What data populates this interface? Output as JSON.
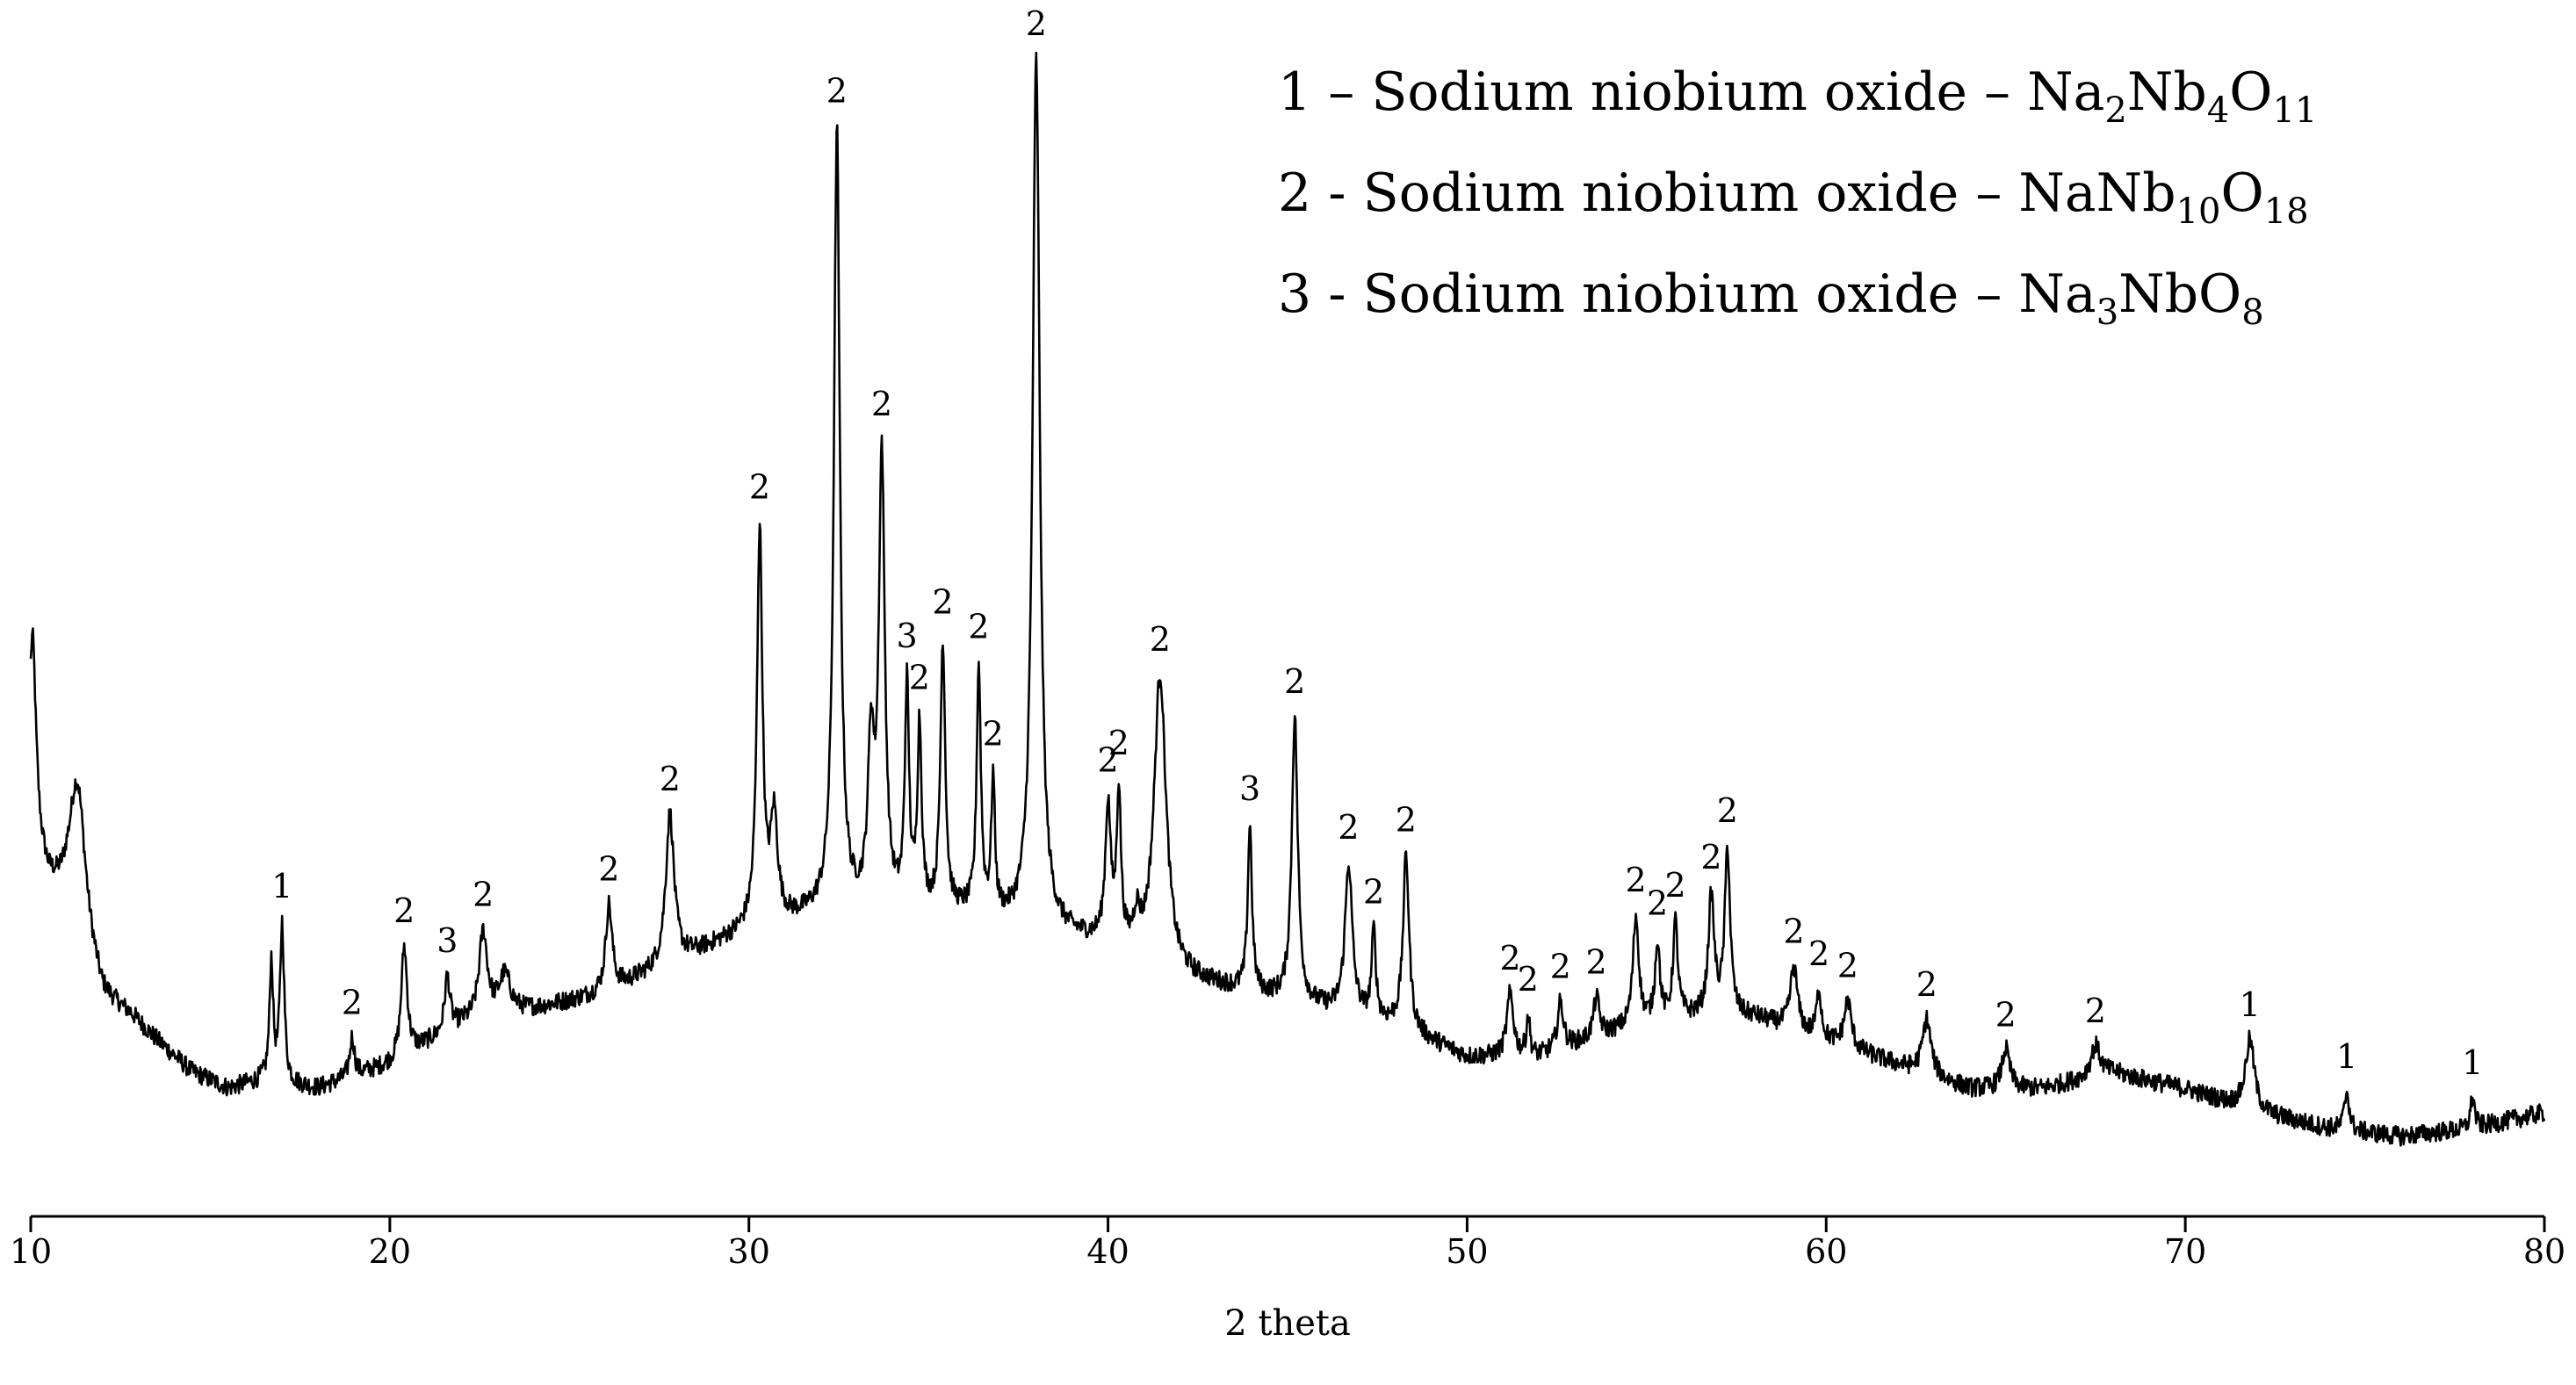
{
  "chart_data": {
    "type": "line",
    "xlabel": "2 theta",
    "ylabel": "",
    "xlim": [
      10,
      80
    ],
    "xticks": [
      10,
      20,
      30,
      40,
      50,
      60,
      70,
      80
    ],
    "grid": false,
    "legend_position": "top-right",
    "line_color": "#000000",
    "legend": [
      {
        "prefix": "1 – Sodium niobium oxide – ",
        "formula": [
          [
            "Na",
            ""
          ],
          [
            "2",
            "sub"
          ],
          [
            "Nb",
            ""
          ],
          [
            "4",
            "sub"
          ],
          [
            "O",
            ""
          ],
          [
            "11",
            "sub"
          ]
        ]
      },
      {
        "prefix": "2 - Sodium niobium oxide – ",
        "formula": [
          [
            "NaNb",
            ""
          ],
          [
            "10",
            "sub"
          ],
          [
            "O",
            ""
          ],
          [
            "18",
            "sub"
          ]
        ]
      },
      {
        "prefix": "3 - Sodium niobium oxide – ",
        "formula": [
          [
            "Na",
            ""
          ],
          [
            "3",
            "sub"
          ],
          [
            "NbO",
            ""
          ],
          [
            "8",
            "sub"
          ]
        ]
      }
    ],
    "baseline": [
      [
        10.0,
        31
      ],
      [
        10.5,
        25
      ],
      [
        11.0,
        22
      ],
      [
        12.0,
        11
      ],
      [
        12.8,
        9
      ],
      [
        13.5,
        6
      ],
      [
        14.5,
        2
      ],
      [
        15.5,
        0
      ],
      [
        16.5,
        1
      ],
      [
        18,
        0
      ],
      [
        20,
        3
      ],
      [
        22,
        8
      ],
      [
        24,
        10
      ],
      [
        26,
        12
      ],
      [
        28,
        16
      ],
      [
        30,
        20
      ],
      [
        32,
        22
      ],
      [
        34,
        22
      ],
      [
        36,
        22
      ],
      [
        38,
        20
      ],
      [
        40,
        18
      ],
      [
        42,
        14
      ],
      [
        44,
        12
      ],
      [
        46,
        10
      ],
      [
        48,
        8
      ],
      [
        50,
        4
      ],
      [
        52,
        4
      ],
      [
        54,
        7
      ],
      [
        56,
        9
      ],
      [
        58,
        9
      ],
      [
        60,
        6
      ],
      [
        62,
        3
      ],
      [
        64,
        0
      ],
      [
        66,
        0
      ],
      [
        68,
        2
      ],
      [
        70,
        0
      ],
      [
        72,
        -3
      ],
      [
        74,
        -5
      ],
      [
        76,
        -6
      ],
      [
        78,
        -5
      ],
      [
        80,
        -3
      ]
    ],
    "peaks": [
      {
        "x": 10.05,
        "h": 26,
        "w": 0.12,
        "label": ""
      },
      {
        "x": 11.3,
        "h": 20,
        "w": 0.28,
        "label": ""
      },
      {
        "x": 16.7,
        "h": 15,
        "w": 0.06,
        "label": ""
      },
      {
        "x": 17.0,
        "h": 20,
        "w": 0.07,
        "label": "1"
      },
      {
        "x": 18.95,
        "h": 5,
        "w": 0.08,
        "label": "2"
      },
      {
        "x": 20.4,
        "h": 14,
        "w": 0.1,
        "label": "2"
      },
      {
        "x": 21.6,
        "h": 7,
        "w": 0.09,
        "label": "3"
      },
      {
        "x": 22.6,
        "h": 11,
        "w": 0.14,
        "label": "2"
      },
      {
        "x": 23.2,
        "h": 5,
        "w": 0.2,
        "label": ""
      },
      {
        "x": 26.1,
        "h": 11,
        "w": 0.11,
        "label": "2"
      },
      {
        "x": 27.8,
        "h": 19,
        "w": 0.14,
        "label": "2"
      },
      {
        "x": 30.3,
        "h": 50,
        "w": 0.09,
        "label": "2"
      },
      {
        "x": 30.7,
        "h": 13,
        "w": 0.12,
        "label": ""
      },
      {
        "x": 32.45,
        "h": 99,
        "w": 0.1,
        "label": "2"
      },
      {
        "x": 33.7,
        "h": 57,
        "w": 0.1,
        "label": "2"
      },
      {
        "x": 33.4,
        "h": 20,
        "w": 0.1,
        "label": ""
      },
      {
        "x": 34.4,
        "h": 28,
        "w": 0.07,
        "label": "3"
      },
      {
        "x": 34.75,
        "h": 23,
        "w": 0.07,
        "label": "2"
      },
      {
        "x": 35.4,
        "h": 34,
        "w": 0.08,
        "label": "2"
      },
      {
        "x": 36.4,
        "h": 31,
        "w": 0.07,
        "label": "2"
      },
      {
        "x": 36.8,
        "h": 17,
        "w": 0.06,
        "label": "2"
      },
      {
        "x": 38.0,
        "h": 110,
        "w": 0.12,
        "label": "2"
      },
      {
        "x": 40.0,
        "h": 17,
        "w": 0.09,
        "label": "2"
      },
      {
        "x": 40.3,
        "h": 19,
        "w": 0.07,
        "label": "2"
      },
      {
        "x": 40.8,
        "h": 4,
        "w": 0.1,
        "label": ""
      },
      {
        "x": 41.45,
        "h": 37,
        "w": 0.2,
        "label": "2"
      },
      {
        "x": 43.95,
        "h": 21,
        "w": 0.07,
        "label": "3"
      },
      {
        "x": 45.2,
        "h": 36,
        "w": 0.1,
        "label": "2"
      },
      {
        "x": 46.7,
        "h": 19,
        "w": 0.12,
        "label": "2"
      },
      {
        "x": 47.4,
        "h": 11,
        "w": 0.07,
        "label": "2"
      },
      {
        "x": 48.3,
        "h": 22,
        "w": 0.1,
        "label": "2"
      },
      {
        "x": 51.2,
        "h": 8,
        "w": 0.11,
        "label": "2"
      },
      {
        "x": 51.7,
        "h": 5,
        "w": 0.06,
        "label": "2"
      },
      {
        "x": 52.6,
        "h": 6,
        "w": 0.1,
        "label": "2"
      },
      {
        "x": 53.6,
        "h": 5,
        "w": 0.1,
        "label": "2"
      },
      {
        "x": 54.7,
        "h": 14,
        "w": 0.1,
        "label": "2"
      },
      {
        "x": 55.3,
        "h": 10,
        "w": 0.08,
        "label": "2"
      },
      {
        "x": 55.8,
        "h": 12,
        "w": 0.08,
        "label": "2"
      },
      {
        "x": 56.8,
        "h": 15,
        "w": 0.1,
        "label": "2"
      },
      {
        "x": 57.25,
        "h": 21,
        "w": 0.09,
        "label": "2"
      },
      {
        "x": 59.1,
        "h": 8,
        "w": 0.12,
        "label": "2"
      },
      {
        "x": 59.8,
        "h": 6,
        "w": 0.08,
        "label": "2"
      },
      {
        "x": 60.6,
        "h": 6,
        "w": 0.12,
        "label": "2"
      },
      {
        "x": 62.8,
        "h": 7,
        "w": 0.14,
        "label": "2"
      },
      {
        "x": 65.0,
        "h": 5,
        "w": 0.13,
        "label": "2"
      },
      {
        "x": 67.5,
        "h": 4,
        "w": 0.16,
        "label": "2"
      },
      {
        "x": 71.8,
        "h": 9,
        "w": 0.15,
        "label": "1"
      },
      {
        "x": 74.5,
        "h": 5,
        "w": 0.08,
        "label": "1"
      },
      {
        "x": 78.0,
        "h": 4,
        "w": 0.07,
        "label": "1"
      }
    ]
  }
}
